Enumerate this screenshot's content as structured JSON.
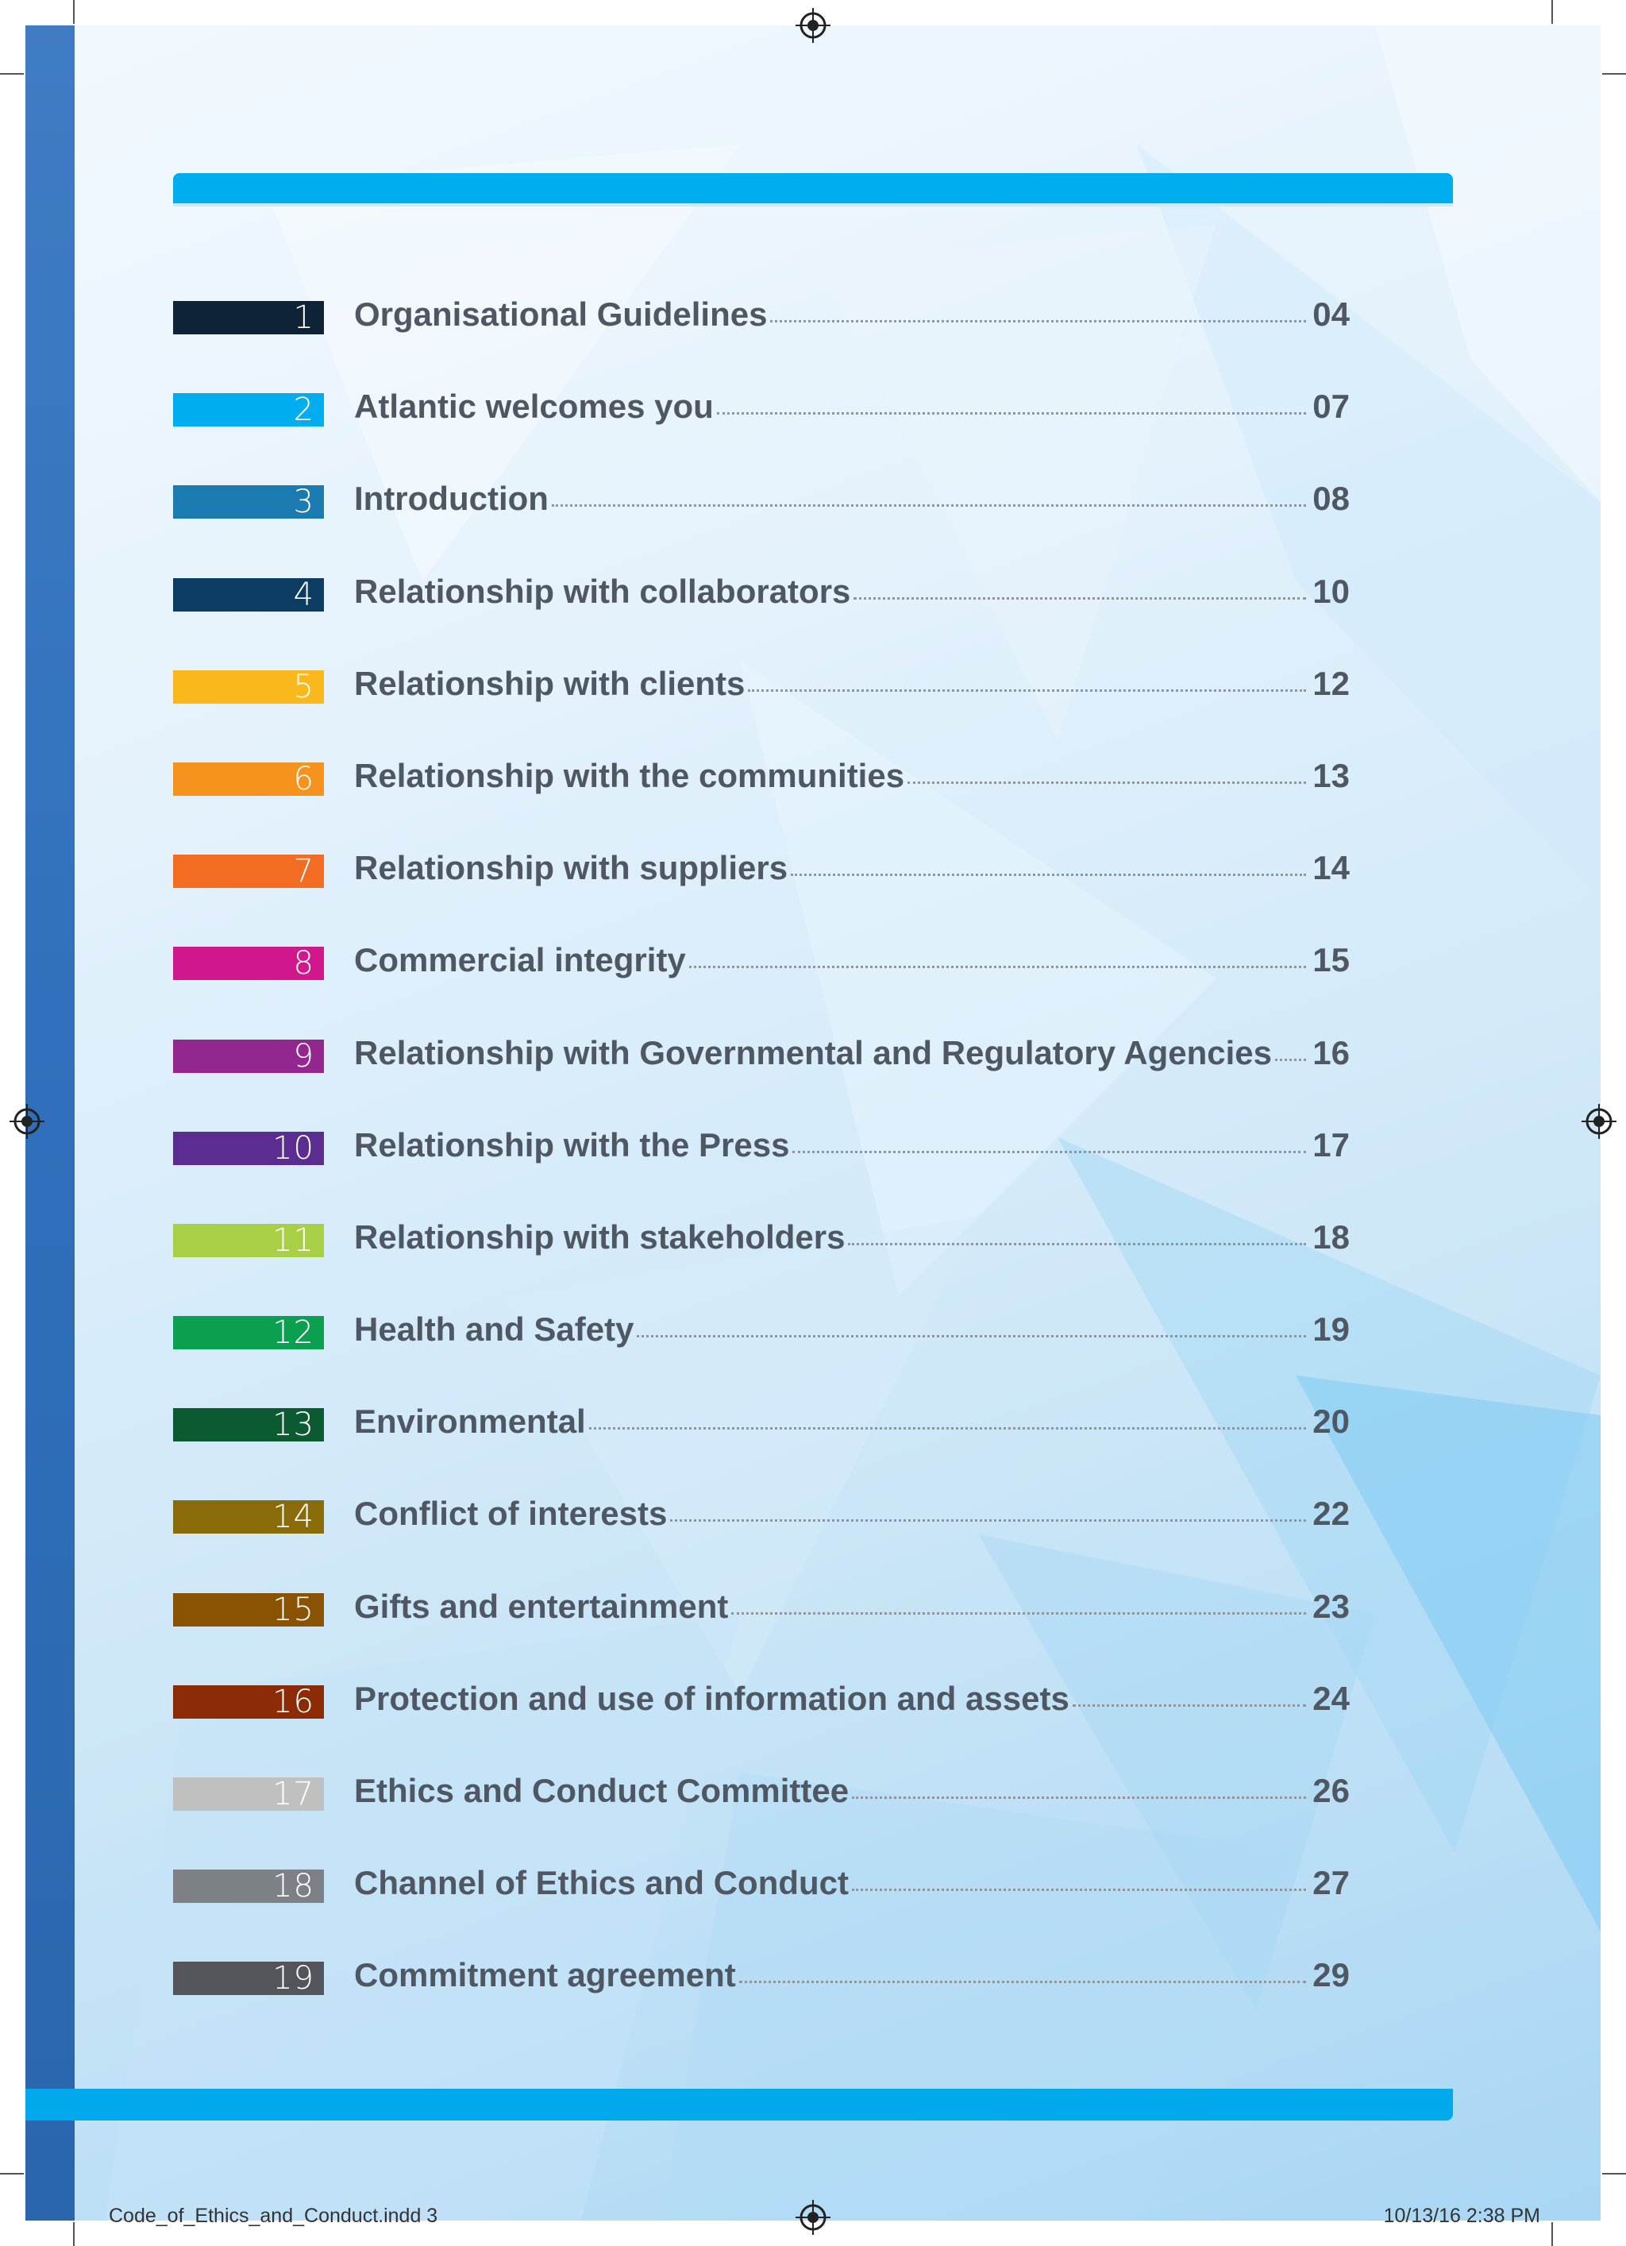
{
  "toc": [
    {
      "num": "1",
      "title": "Organisational Guidelines",
      "page": "04",
      "color": "#0e2238"
    },
    {
      "num": "2",
      "title": "Atlantic welcomes you",
      "page": "07",
      "color": "#00aeef"
    },
    {
      "num": "3",
      "title": " Introduction",
      "page": "08",
      "color": "#1b7bb0"
    },
    {
      "num": "4",
      "title": "Relationship with collaborators",
      "page": "10",
      "color": "#0c3c61"
    },
    {
      "num": "5",
      "title": "Relationship with clients",
      "page": "12",
      "color": "#fbb81b"
    },
    {
      "num": "6",
      "title": "Relationship with the communities",
      "page": "13",
      "color": "#f6921e"
    },
    {
      "num": "7",
      "title": "Relationship with suppliers",
      "page": "14",
      "color": "#f26d21"
    },
    {
      "num": "8",
      "title": "Commercial integrity",
      "page": "15",
      "color": "#d0178c"
    },
    {
      "num": "9",
      "title": "Relationship with Governmental and Regulatory Agencies",
      "page": "16",
      "color": "#93278f"
    },
    {
      "num": "10",
      "title": "Relationship with the Press",
      "page": "17",
      "color": "#5b2d91"
    },
    {
      "num": "11",
      "title": "Relationship with stakeholders",
      "page": "18",
      "color": "#a8cf45"
    },
    {
      "num": "12",
      "title": "Health and Safety",
      "page": "19",
      "color": "#0aa04f"
    },
    {
      "num": "13",
      "title": "Environmental",
      "page": "20",
      "color": "#0c5a32"
    },
    {
      "num": "14",
      "title": "Conflict of interests",
      "page": "22",
      "color": "#8a6b0a"
    },
    {
      "num": "15",
      "title": "Gifts and entertainment",
      "page": "23",
      "color": "#8a5304"
    },
    {
      "num": "16",
      "title": "Protection and use of information and assets",
      "page": "24",
      "color": "#8c2c07"
    },
    {
      "num": "17",
      "title": "Ethics and Conduct Committee",
      "page": "26",
      "color": "#c0c0c0"
    },
    {
      "num": "18",
      "title": "Channel of Ethics and Conduct",
      "page": "27",
      "color": "#7d8085"
    },
    {
      "num": "19",
      "title": "Commitment agreement",
      "page": "29",
      "color": "#54555a"
    }
  ],
  "footer": {
    "file": "Code_of_Ethics_and_Conduct.indd   3",
    "datetime": "10/13/16   2:38 PM"
  },
  "colors": {
    "accent_bar": "#00aeef",
    "left_strip": "#2f6fbb",
    "text": "#4f5762"
  }
}
